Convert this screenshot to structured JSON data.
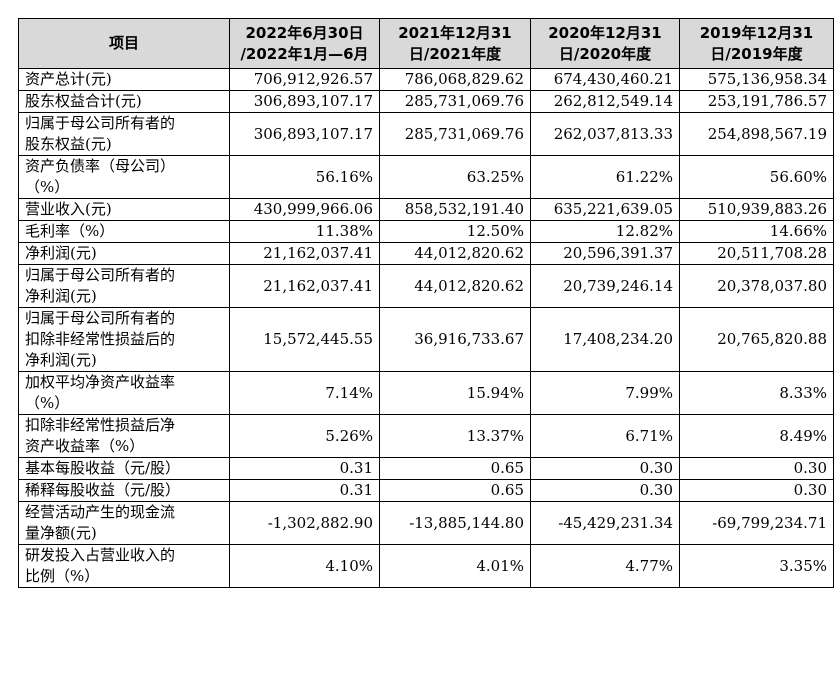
{
  "table": {
    "headers": [
      [
        "项目"
      ],
      [
        "2022年6月30日",
        "/2022年1月—6月"
      ],
      [
        "2021年12月31",
        "日/2021年度"
      ],
      [
        "2020年12月31",
        "日/2020年度"
      ],
      [
        "2019年12月31",
        "日/2019年度"
      ]
    ],
    "rows": [
      {
        "label": [
          "资产总计(元)"
        ],
        "values": [
          "706,912,926.57",
          "786,068,829.62",
          "674,430,460.21",
          "575,136,958.34"
        ]
      },
      {
        "label": [
          "股东权益合计(元)"
        ],
        "values": [
          "306,893,107.17",
          "285,731,069.76",
          "262,812,549.14",
          "253,191,786.57"
        ]
      },
      {
        "label": [
          "归属于母公司所有者的",
          "股东权益(元)"
        ],
        "values": [
          "306,893,107.17",
          "285,731,069.76",
          "262,037,813.33",
          "254,898,567.19"
        ]
      },
      {
        "label": [
          "资产负债率（母公司）",
          "（%）"
        ],
        "values": [
          "56.16%",
          "63.25%",
          "61.22%",
          "56.60%"
        ]
      },
      {
        "label": [
          "营业收入(元)"
        ],
        "values": [
          "430,999,966.06",
          "858,532,191.40",
          "635,221,639.05",
          "510,939,883.26"
        ]
      },
      {
        "label": [
          "毛利率（%）"
        ],
        "values": [
          "11.38%",
          "12.50%",
          "12.82%",
          "14.66%"
        ]
      },
      {
        "label": [
          "净利润(元)"
        ],
        "values": [
          "21,162,037.41",
          "44,012,820.62",
          "20,596,391.37",
          "20,511,708.28"
        ]
      },
      {
        "label": [
          "归属于母公司所有者的",
          "净利润(元)"
        ],
        "values": [
          "21,162,037.41",
          "44,012,820.62",
          "20,739,246.14",
          "20,378,037.80"
        ]
      },
      {
        "label": [
          "归属于母公司所有者的",
          "扣除非经常性损益后的",
          "净利润(元)"
        ],
        "values": [
          "15,572,445.55",
          "36,916,733.67",
          "17,408,234.20",
          "20,765,820.88"
        ]
      },
      {
        "label": [
          "加权平均净资产收益率",
          "（%）"
        ],
        "values": [
          "7.14%",
          "15.94%",
          "7.99%",
          "8.33%"
        ]
      },
      {
        "label": [
          "扣除非经常性损益后净",
          "资产收益率（%）"
        ],
        "values": [
          "5.26%",
          "13.37%",
          "6.71%",
          "8.49%"
        ]
      },
      {
        "label": [
          "基本每股收益（元/股）"
        ],
        "values": [
          "0.31",
          "0.65",
          "0.30",
          "0.30"
        ]
      },
      {
        "label": [
          "稀释每股收益（元/股）"
        ],
        "values": [
          "0.31",
          "0.65",
          "0.30",
          "0.30"
        ]
      },
      {
        "label": [
          "经营活动产生的现金流",
          "量净额(元)"
        ],
        "values": [
          "-1,302,882.90",
          "-13,885,144.80",
          "-45,429,231.34",
          "-69,799,234.71"
        ]
      },
      {
        "label": [
          "研发投入占营业收入的",
          "比例（%）"
        ],
        "values": [
          "4.10%",
          "4.01%",
          "4.77%",
          "3.35%"
        ]
      }
    ]
  }
}
